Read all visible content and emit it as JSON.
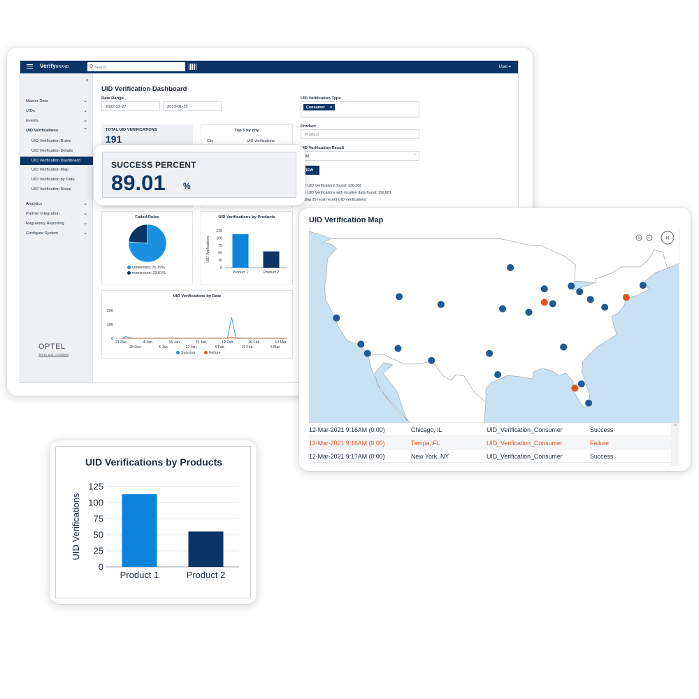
{
  "app": {
    "brand": "Verify",
    "brand_suffix": "BRAND",
    "search_placeholder": "Search",
    "user_menu": "User ▾",
    "sidebar": {
      "items": [
        {
          "label": "Master Data",
          "chevron": "⌄"
        },
        {
          "label": "UIDs",
          "chevron": "⌄"
        },
        {
          "label": "Events",
          "chevron": "⌄"
        },
        {
          "label": "UID Verifications",
          "chevron": "⌃"
        },
        {
          "label": "UID Verification Rules"
        },
        {
          "label": "UID Verification Details"
        },
        {
          "label": "UID Verification Dashboard"
        },
        {
          "label": "UID Verification Map"
        },
        {
          "label": "UID Verification by Date"
        },
        {
          "label": "UID Verification Notes"
        },
        {
          "label": "Analytics",
          "chevron": "⌄"
        },
        {
          "label": "Partner Integration",
          "chevron": "⌄"
        },
        {
          "label": "Regulatory Reporting",
          "chevron": "⌄"
        },
        {
          "label": "Configure System",
          "chevron": "⌄"
        }
      ],
      "logo_text": "OPTEL",
      "terms": "Terms and conditions"
    },
    "dashboard": {
      "title": "UID Verification Dashboard",
      "date_range_label": "Date Range",
      "date_from": "2022-12-27",
      "date_to": "2023-01-25",
      "type_label": "UID Verification Type",
      "type_chip": "Consumer",
      "chip_remove": "×",
      "product_label": "Product",
      "product_placeholder": "Product",
      "result_label": "UID Verification Result",
      "result_value": "All",
      "view_button": "VIEW",
      "info_total": "Total UID Verifications found: 120,208",
      "info_location": "Total UID Verifications with location data found: 116,681",
      "info_plotting": "Plotting 25 most recent UID Verifications:",
      "total_label": "TOTAL UID VERIFICATIONS",
      "total_value": "191",
      "top5_title": "Top 5 by city",
      "top5_col_city": "City",
      "top5_col_verif": "UID Verifications",
      "failed_rules_title": "Failed Rules",
      "mini_bar_title": "UID Verifications by Products",
      "by_date_title": "UID Verifications by Date"
    }
  },
  "success": {
    "label": "SUCCESS PERCENT",
    "value": "89.01",
    "unit": "%"
  },
  "map": {
    "title": "UID Verification Map",
    "zoom_in": "+",
    "zoom_out": "−",
    "compass": "N",
    "rows": [
      {
        "time": "12-Mar-2021 9:16AM (0:00)",
        "city": "Chicago, IL",
        "type": "UID_Verification_Consumer",
        "result": "Success",
        "status": "success"
      },
      {
        "time": "12-Mar-2021 9:16AM (0:00)",
        "city": "Tampa, FL",
        "type": "UID_Verification_Consumer",
        "result": "Failure",
        "status": "failure"
      },
      {
        "time": "12-Mar-2021 9:17AM (0:00)",
        "city": "New York, NY",
        "type": "UID_Verification_Consumer",
        "result": "Success",
        "status": "success"
      }
    ],
    "markers": [
      {
        "lon": -122.4,
        "lat": 37.8,
        "status": "success"
      },
      {
        "lon": -118.3,
        "lat": 34.1,
        "status": "success"
      },
      {
        "lon": -117.2,
        "lat": 32.8,
        "status": "success"
      },
      {
        "lon": -112.1,
        "lat": 33.5,
        "status": "success"
      },
      {
        "lon": -111.9,
        "lat": 40.8,
        "status": "success"
      },
      {
        "lon": -104.9,
        "lat": 39.7,
        "status": "success"
      },
      {
        "lon": -106.5,
        "lat": 31.8,
        "status": "success"
      },
      {
        "lon": -95.4,
        "lat": 29.8,
        "status": "success"
      },
      {
        "lon": -96.8,
        "lat": 32.8,
        "status": "success"
      },
      {
        "lon": -94.6,
        "lat": 39.1,
        "status": "success"
      },
      {
        "lon": -93.3,
        "lat": 44.9,
        "status": "success"
      },
      {
        "lon": -90.2,
        "lat": 38.6,
        "status": "success"
      },
      {
        "lon": -87.6,
        "lat": 41.9,
        "status": "success"
      },
      {
        "lon": -87.6,
        "lat": 40.0,
        "status": "failure"
      },
      {
        "lon": -86.2,
        "lat": 39.8,
        "status": "success"
      },
      {
        "lon": -84.4,
        "lat": 33.7,
        "status": "success"
      },
      {
        "lon": -83.1,
        "lat": 42.3,
        "status": "success"
      },
      {
        "lon": -81.7,
        "lat": 41.5,
        "status": "success"
      },
      {
        "lon": -79.9,
        "lat": 40.4,
        "status": "success"
      },
      {
        "lon": -77.5,
        "lat": 39.3,
        "status": "success"
      },
      {
        "lon": -73.9,
        "lat": 40.7,
        "status": "failure"
      },
      {
        "lon": -71.1,
        "lat": 42.4,
        "status": "success"
      },
      {
        "lon": -82.5,
        "lat": 27.9,
        "status": "failure"
      },
      {
        "lon": -81.4,
        "lat": 28.5,
        "status": "success"
      },
      {
        "lon": -80.2,
        "lat": 25.8,
        "status": "success"
      }
    ],
    "colors": {
      "water": "#c8e1f3",
      "land": "#ffffff",
      "border": "#9aa3ad",
      "success": "#1f5a96",
      "failure": "#e2561d"
    }
  },
  "chart_data": [
    {
      "id": "products-large",
      "type": "bar",
      "title": "UID Verifications by Products",
      "ylabel": "UID Verifications",
      "xlabel": "",
      "categories": [
        "Product 1",
        "Product 2"
      ],
      "values": [
        113,
        55
      ],
      "colors": [
        "#0b84dd",
        "#0b3566"
      ],
      "ylim": [
        0,
        125
      ],
      "yticks": [
        0,
        25,
        50,
        75,
        100,
        125
      ],
      "grid": true
    },
    {
      "id": "products-mini",
      "type": "bar",
      "title": "UID Verifications by Products",
      "ylabel": "UID Verifications",
      "categories": [
        "Product 1",
        "Product 2"
      ],
      "values": [
        113,
        55
      ],
      "colors": [
        "#0b84dd",
        "#0b3566"
      ],
      "ylim": [
        0,
        125
      ],
      "yticks": [
        0,
        25,
        50,
        75,
        100,
        125
      ]
    },
    {
      "id": "failed-rules",
      "type": "pie",
      "title": "Failed Rules",
      "labels": [
        "codeexists",
        "eventcount"
      ],
      "values": [
        76.19,
        23.81
      ],
      "display": [
        "codeexists: 76.19%",
        "eventcount: 23.81%"
      ],
      "colors": [
        "#1a8fe0",
        "#0b3566"
      ]
    },
    {
      "id": "by-date",
      "type": "line",
      "title": "UID Verifications by Date",
      "xticks_top": [
        "21 Dec.",
        "4 Jan.",
        "15 Jan.",
        "29 Jan.",
        "12 Feb.",
        "26 Feb.",
        "12 Mar."
      ],
      "xticks_bottom": [
        "28 Dec.",
        "8 Jan.",
        "22 Jan.",
        "5 Feb",
        "19 Feb.",
        "5 Mar."
      ],
      "yticks": [
        0,
        100,
        200
      ],
      "ylim": [
        0,
        200
      ],
      "series": [
        {
          "name": "Success",
          "color": "#1a8fe0",
          "values": [
            0,
            12,
            4,
            2,
            1,
            1,
            2,
            1,
            1,
            2,
            1,
            1,
            2,
            3,
            1,
            1,
            1,
            2,
            1,
            1,
            1,
            2,
            2,
            2,
            1,
            1,
            150,
            5,
            3,
            1,
            1,
            1,
            1,
            1,
            2,
            1,
            1,
            1,
            1,
            1
          ]
        },
        {
          "name": "Failure",
          "color": "#e2561d",
          "values": [
            0,
            1,
            1,
            0,
            0,
            0,
            0,
            0,
            0,
            0,
            0,
            0,
            0,
            0,
            0,
            0,
            0,
            0,
            0,
            0,
            0,
            0,
            0,
            0,
            0,
            0,
            10,
            1,
            0,
            0,
            0,
            0,
            0,
            0,
            0,
            0,
            0,
            0,
            0,
            0
          ]
        }
      ]
    }
  ]
}
